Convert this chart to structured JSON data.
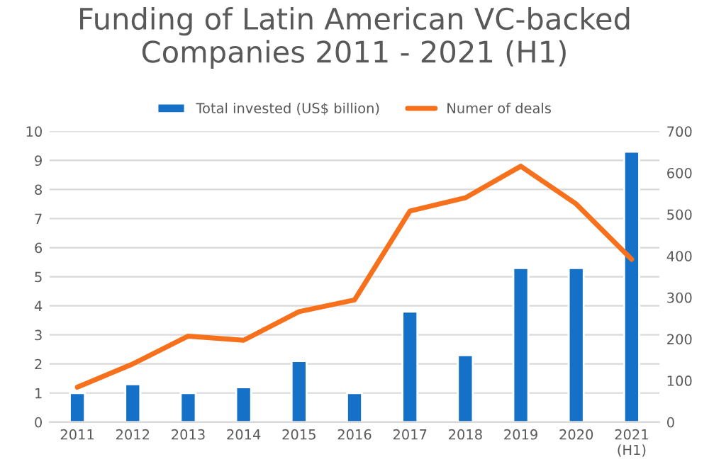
{
  "chart_data": {
    "type": "bar",
    "title": "Funding of Latin American VC-backed\nCompanies 2011 - 2021 (H1)",
    "categories": [
      "2011",
      "2012",
      "2013",
      "2014",
      "2015",
      "2016",
      "2017",
      "2018",
      "2019",
      "2020",
      "2021\n(H1)"
    ],
    "series": [
      {
        "name": "Total invested (US$ billion)",
        "color": "#1570c8",
        "values": [
          1.0,
          1.3,
          1.0,
          1.2,
          2.1,
          1.0,
          3.8,
          2.3,
          5.3,
          5.3,
          9.3
        ]
      },
      {
        "name": "Numer of deals",
        "type": "line",
        "axis": "y2",
        "color": "#f7711c",
        "values": [
          84,
          140,
          207,
          197,
          266,
          294,
          508,
          540,
          616,
          525,
          392
        ]
      }
    ],
    "ylim": [
      0,
      10
    ],
    "yticks": [
      0,
      1,
      2,
      3,
      4,
      5,
      6,
      7,
      8,
      9,
      10
    ],
    "y2lim": [
      0,
      700
    ],
    "y2ticks": [
      0,
      100,
      200,
      300,
      400,
      500,
      600,
      700
    ],
    "grid": "y",
    "legend": "top",
    "marker": "none",
    "line_style": "solid"
  }
}
